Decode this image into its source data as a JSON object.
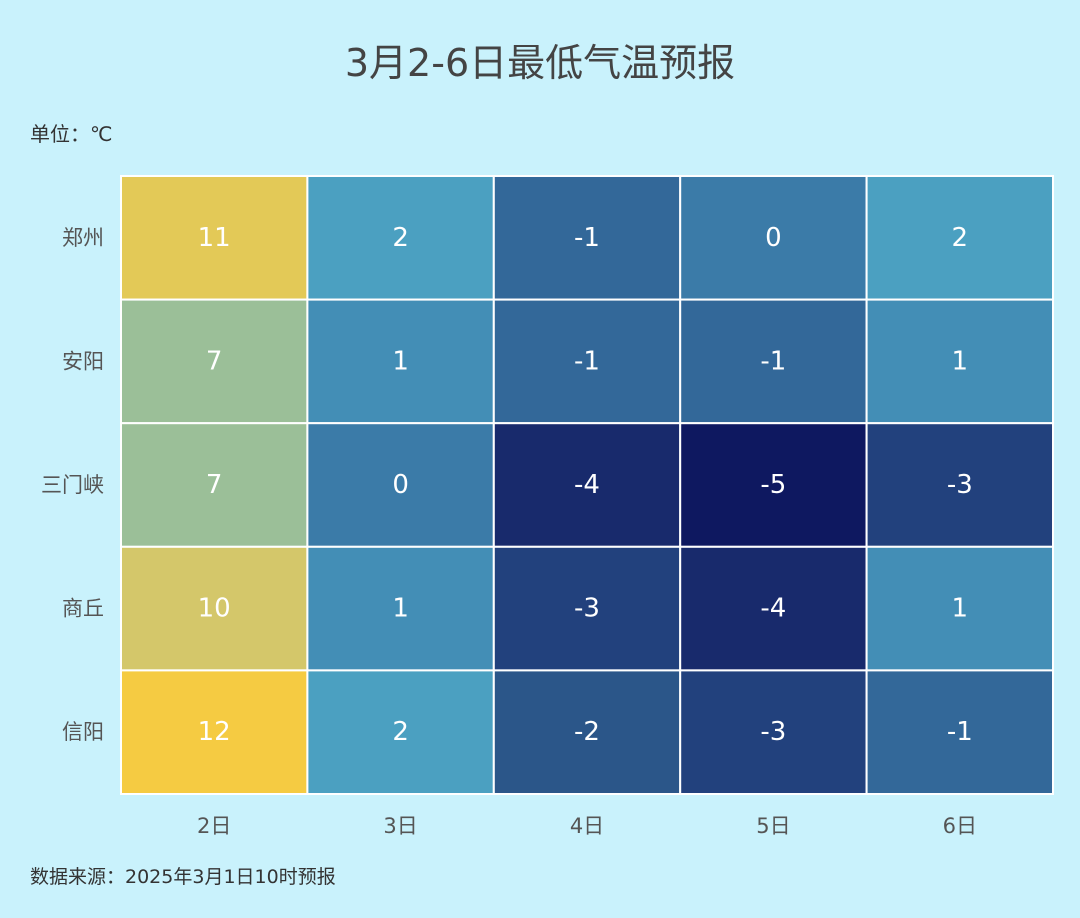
{
  "chart_data": {
    "type": "heatmap",
    "title": "3月2-6日最低气温预报",
    "unit_label": "单位：℃",
    "source": "数据来源：2025年3月1日10时预报",
    "x_categories": [
      "2日",
      "3日",
      "4日",
      "5日",
      "6日"
    ],
    "y_categories": [
      "郑州",
      "安阳",
      "三门峡",
      "商丘",
      "信阳"
    ],
    "values": [
      [
        11,
        2,
        -1,
        0,
        2
      ],
      [
        7,
        1,
        -1,
        -1,
        1
      ],
      [
        7,
        0,
        -4,
        -5,
        -3
      ],
      [
        10,
        1,
        -3,
        -4,
        1
      ],
      [
        12,
        2,
        -2,
        -3,
        -1
      ]
    ],
    "color_scale": {
      "12": "#f5cb42",
      "11": "#e3c957",
      "10": "#d4c76a",
      "7": "#9bbf98",
      "2": "#4ba0c1",
      "1": "#438eb6",
      "0": "#3b7ba8",
      "-1": "#336899",
      "-2": "#2b5689",
      "-3": "#22417d",
      "-4": "#182a6c",
      "-5": "#0e1860"
    }
  }
}
